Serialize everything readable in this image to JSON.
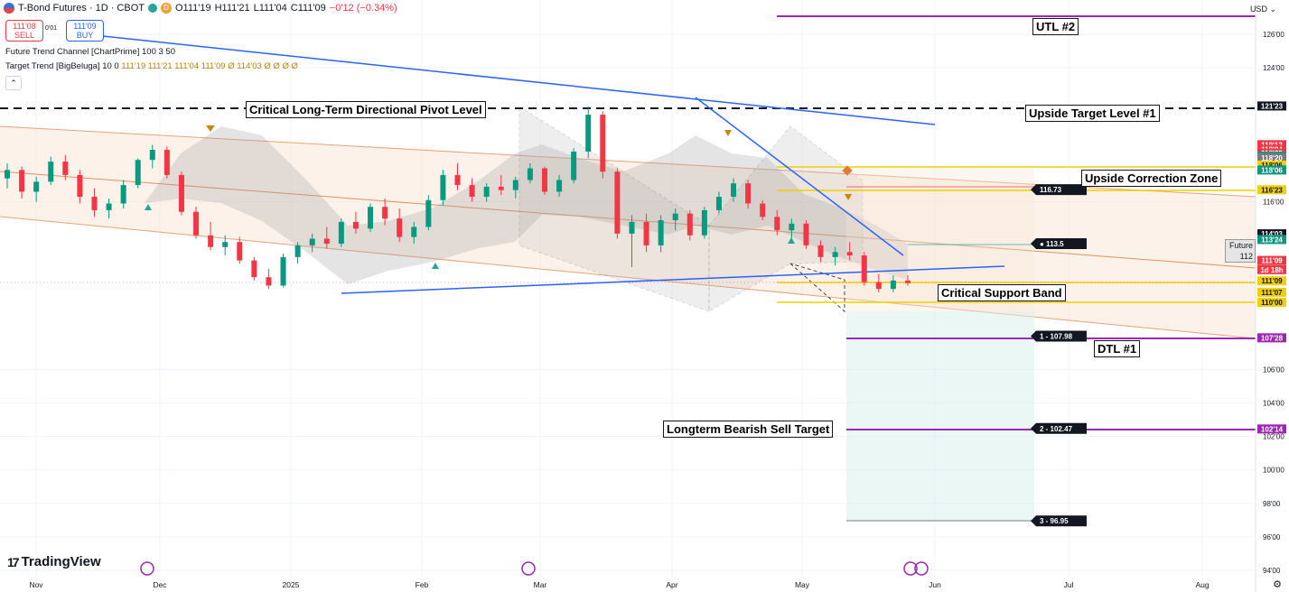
{
  "header": {
    "symbol": "T-Bond Futures · 1D · CBOT",
    "mode_badge": "D",
    "open": "O111'19",
    "high": "H111'21",
    "low": "L111'04",
    "close": "C111'09",
    "change": "−0'12 (−0.34%)"
  },
  "trade": {
    "sell_price": "111'08",
    "sell_label": "SELL",
    "spread": "0'01",
    "buy_price": "111'09",
    "buy_label": "BUY"
  },
  "indicators": [
    {
      "name": "Future Trend Channel [ChartPrime]",
      "params": "100 3 50"
    },
    {
      "name": "Target Trend [BigBeluga]",
      "params": "10 0",
      "values": "111'19  111'21  111'04  111'09  Ø  114'03  Ø  Ø  Ø  Ø"
    }
  ],
  "currency": "USD",
  "annotations": {
    "pivot": "Critical Long-Term Directional Pivot Level",
    "utl2": "UTL #2",
    "upside_target": "Upside Target Level #1",
    "upside_correction": "Upside Correction Zone",
    "support_band": "Critical Support Band",
    "dtl1": "DTL #1",
    "bearish_target": "Longterm Bearish Sell Target"
  },
  "future_label": {
    "line1": "Future",
    "line2": "112"
  },
  "chart_data": {
    "type": "candlestick",
    "x_axis_labels": [
      "Nov",
      "Dec",
      "2025",
      "Feb",
      "Mar",
      "Apr",
      "May",
      "Jun",
      "Jul",
      "Aug"
    ],
    "y_axis_labels": [
      "126'00",
      "124'00",
      "116'00",
      "106'00",
      "104'00",
      "102'00",
      "100'00",
      "98'00",
      "96'00",
      "94'00"
    ],
    "ylim": [
      94,
      127.5
    ],
    "price_tags": [
      {
        "text": "121'23",
        "value": 121.72,
        "color": "#131722"
      },
      {
        "text": "119'13",
        "value": 119.41,
        "color": "#f23645"
      },
      {
        "text": "119'04",
        "value": 119.13,
        "color": "#f23645"
      },
      {
        "text": "118'29",
        "value": 118.91,
        "color": "#f23645"
      },
      {
        "text": "118'23",
        "value": 118.72,
        "color": "#089981"
      },
      {
        "text": "118'20",
        "value": 118.63,
        "color": "#787b86"
      },
      {
        "text": "118'06",
        "value": 118.19,
        "color": "#f0d000"
      },
      {
        "text": "118'06",
        "value": 117.9,
        "color": "#089981"
      },
      {
        "text": "116'23",
        "value": 116.72,
        "color": "#f0d000"
      },
      {
        "text": "114'03",
        "value": 114.09,
        "color": "#131722"
      },
      {
        "text": "113'24",
        "value": 113.75,
        "color": "#089981"
      },
      {
        "text": "111'09",
        "value": 112.5,
        "color": "#f23645"
      },
      {
        "text": "1d 18h",
        "value": 111.95,
        "color": "#f23645"
      },
      {
        "text": "111'09",
        "value": 111.28,
        "color": "#f0d000"
      },
      {
        "text": "111'07",
        "value": 110.6,
        "color": "#f0d000"
      },
      {
        "text": "110'00",
        "value": 110.0,
        "color": "#f0d000"
      },
      {
        "text": "107'28",
        "value": 107.88,
        "color": "#9c27b0"
      },
      {
        "text": "102'14",
        "value": 102.44,
        "color": "#9c27b0"
      }
    ],
    "target_labels": [
      {
        "text": "1 - 107.98",
        "value": 107.98
      },
      {
        "text": "2 - 102.47",
        "value": 102.47
      },
      {
        "text": "3 - 96.95",
        "value": 96.95
      },
      {
        "text": "● 113.5",
        "value": 113.5
      },
      {
        "text": "116.73",
        "value": 116.73
      }
    ],
    "levels": {
      "utl2": 126.6,
      "pivot": 120.0,
      "upside_correction_top": 117.3,
      "upside_correction_bottom": 116.6,
      "support_top": 111.3,
      "support_bottom": 110.0,
      "dtl1": 107.88,
      "bearish_target": 102.44
    },
    "candle_ohlc_sample": [
      [
        117.4,
        118.3,
        116.8,
        117.9
      ],
      [
        117.9,
        118.1,
        116.2,
        116.6
      ],
      [
        116.6,
        117.5,
        116.0,
        117.2
      ],
      [
        117.2,
        118.7,
        117.0,
        118.4
      ],
      [
        118.4,
        118.8,
        117.3,
        117.6
      ],
      [
        117.6,
        117.9,
        115.9,
        116.3
      ],
      [
        116.3,
        116.8,
        115.1,
        115.5
      ],
      [
        115.5,
        116.2,
        115.0,
        115.9
      ],
      [
        115.9,
        117.3,
        115.6,
        117.0
      ],
      [
        117.0,
        118.6,
        116.8,
        118.5
      ],
      [
        118.5,
        119.4,
        118.0,
        119.1
      ],
      [
        119.1,
        119.3,
        117.4,
        117.6
      ],
      [
        117.6,
        117.8,
        115.2,
        115.4
      ],
      [
        115.4,
        115.7,
        113.8,
        114.0
      ],
      [
        114.0,
        114.8,
        113.1,
        113.3
      ],
      [
        113.3,
        114.0,
        112.8,
        113.6
      ],
      [
        113.6,
        113.9,
        112.3,
        112.5
      ],
      [
        112.5,
        112.7,
        111.3,
        111.5
      ],
      [
        111.5,
        112.0,
        110.8,
        111.0
      ],
      [
        111.0,
        112.9,
        110.9,
        112.7
      ],
      [
        112.7,
        113.6,
        112.3,
        113.4
      ],
      [
        113.4,
        114.1,
        113.0,
        113.8
      ],
      [
        113.8,
        114.5,
        113.2,
        113.5
      ],
      [
        113.5,
        115.0,
        113.3,
        114.8
      ],
      [
        114.8,
        115.4,
        114.1,
        114.4
      ],
      [
        114.4,
        115.9,
        114.2,
        115.7
      ],
      [
        115.7,
        116.2,
        114.6,
        115.0
      ],
      [
        115.0,
        115.6,
        113.6,
        113.9
      ],
      [
        113.9,
        114.8,
        113.5,
        114.5
      ],
      [
        114.5,
        116.4,
        114.3,
        116.1
      ],
      [
        116.1,
        117.9,
        115.8,
        117.6
      ],
      [
        117.6,
        118.3,
        116.7,
        117.0
      ],
      [
        117.0,
        117.4,
        116.0,
        116.3
      ],
      [
        116.3,
        117.1,
        116.0,
        116.9
      ],
      [
        116.9,
        117.6,
        116.4,
        116.7
      ],
      [
        116.7,
        117.5,
        116.2,
        117.3
      ],
      [
        117.3,
        118.3,
        117.1,
        118.0
      ],
      [
        118.0,
        118.1,
        116.4,
        116.6
      ],
      [
        116.6,
        117.6,
        116.3,
        117.3
      ],
      [
        117.3,
        119.2,
        117.1,
        119.0
      ],
      [
        119.0,
        121.7,
        118.6,
        121.2
      ],
      [
        121.2,
        121.4,
        117.4,
        117.8
      ],
      [
        117.8,
        118.0,
        113.8,
        114.1
      ],
      [
        114.1,
        115.2,
        112.1,
        114.8
      ],
      [
        114.8,
        115.3,
        113.0,
        113.4
      ],
      [
        113.4,
        115.2,
        113.0,
        114.9
      ],
      [
        114.9,
        115.6,
        114.3,
        115.3
      ],
      [
        115.3,
        115.5,
        113.7,
        114.0
      ],
      [
        114.0,
        115.7,
        113.8,
        115.5
      ],
      [
        115.5,
        116.6,
        115.3,
        116.3
      ],
      [
        116.3,
        117.4,
        116.0,
        117.1
      ],
      [
        117.1,
        117.3,
        115.6,
        115.9
      ],
      [
        115.9,
        116.1,
        114.9,
        115.1
      ],
      [
        115.1,
        115.5,
        114.0,
        114.3
      ],
      [
        114.3,
        115.0,
        113.5,
        114.7
      ],
      [
        114.7,
        114.9,
        113.2,
        113.4
      ],
      [
        113.4,
        113.7,
        112.4,
        112.7
      ],
      [
        112.7,
        113.3,
        112.2,
        113.0
      ],
      [
        113.0,
        113.6,
        112.5,
        112.8
      ],
      [
        112.8,
        113.0,
        111.0,
        111.2
      ],
      [
        111.2,
        111.7,
        110.6,
        110.8
      ],
      [
        110.8,
        111.6,
        110.6,
        111.3
      ],
      [
        111.3,
        111.6,
        111.0,
        111.15
      ]
    ]
  }
}
